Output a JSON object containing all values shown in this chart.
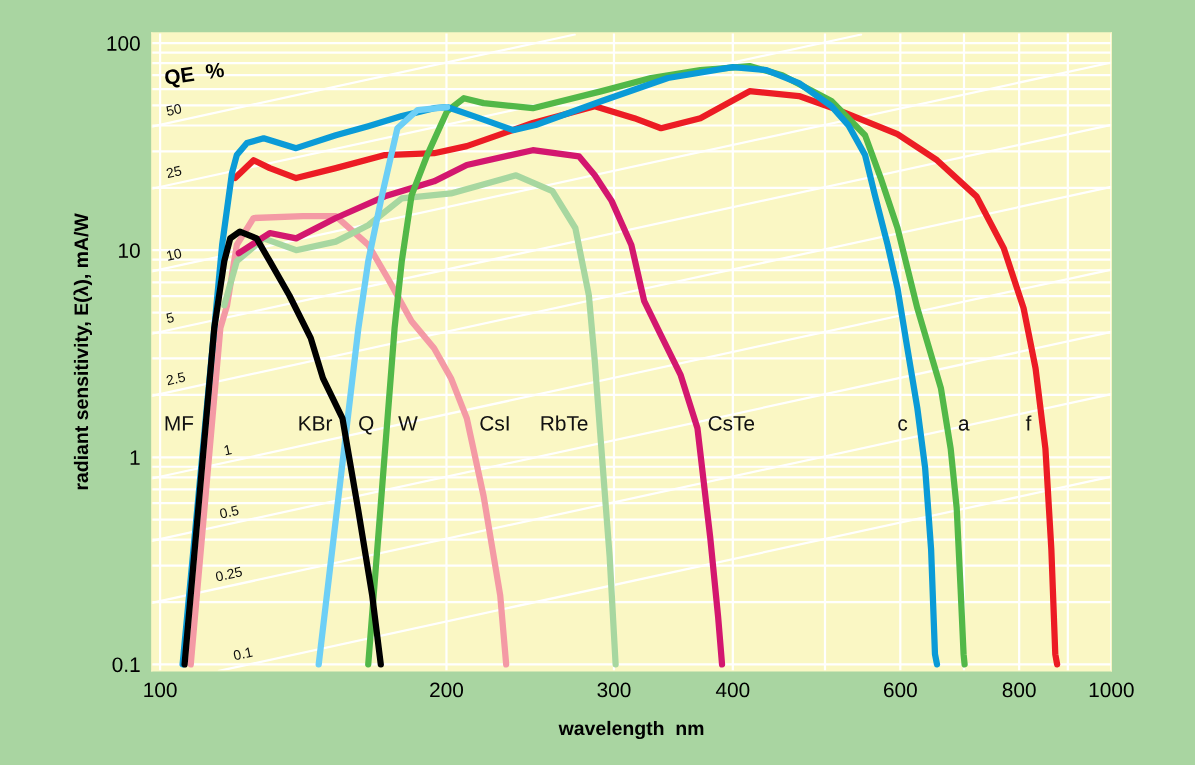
{
  "chart_data": {
    "type": "line",
    "log": "xy",
    "xlabel": "wavelength  nm",
    "ylabel": "radiant sensitivity, E(λ), mA/W",
    "xlim": [
      98,
      1000
    ],
    "ylim": [
      0.093,
      112
    ],
    "xticks": [
      100,
      200,
      300,
      400,
      {
        "value": 500,
        "label": null
      },
      600,
      {
        "value": 700,
        "label": null
      },
      800,
      {
        "value": 900,
        "label": null
      },
      1000
    ],
    "yticks": [
      0.1,
      1,
      10,
      100
    ],
    "grid": true,
    "series": [
      {
        "name": "50",
        "color": "#ffffff",
        "x": [
          98,
          272.8
        ],
        "values": [
          39.5,
          110
        ]
      },
      {
        "name": "25",
        "color": "#ffffff",
        "x": [
          98,
          545.6
        ],
        "values": [
          19.8,
          110
        ]
      },
      {
        "name": "10",
        "color": "#ffffff",
        "x": [
          98,
          1000
        ],
        "values": [
          7.9,
          80.6
        ]
      },
      {
        "name": "5",
        "color": "#ffffff",
        "x": [
          98,
          1000
        ],
        "values": [
          3.95,
          40.3
        ]
      },
      {
        "name": "2.5",
        "color": "#ffffff",
        "x": [
          98,
          1000
        ],
        "values": [
          1.98,
          20.2
        ]
      },
      {
        "name": "1",
        "color": "#ffffff",
        "x": [
          98,
          1000
        ],
        "values": [
          0.79,
          8.06
        ]
      },
      {
        "name": "0.5",
        "color": "#ffffff",
        "x": [
          98,
          1000
        ],
        "values": [
          0.395,
          4.03
        ]
      },
      {
        "name": "0.25",
        "color": "#ffffff",
        "x": [
          98,
          1000
        ],
        "values": [
          0.198,
          2.02
        ]
      },
      {
        "name": "0.1",
        "color": "#ffffff",
        "x": [
          115.3,
          1000
        ],
        "values": [
          0.093,
          0.806
        ]
      },
      {
        "color": "#f49aa5",
        "x": [
          107.7,
          115.7,
          117.6,
          120.4,
          125.4,
          141.3,
          153.0,
          165.5,
          173.5,
          183.8,
          194.1,
          202.2,
          210.1,
          218.8,
          227.8,
          231.1
        ],
        "values": [
          0.1,
          4.2,
          5.42,
          10.6,
          14.3,
          14.6,
          14.6,
          10.6,
          7.32,
          4.54,
          3.36,
          2.41,
          1.54,
          0.65,
          0.215,
          0.1
        ]
      },
      {
        "color": "#a7d7a0",
        "x": [
          116.8,
          120.4,
          128.5,
          139.0,
          153.0,
          165.5,
          179.5,
          202.2,
          236.7,
          258.5,
          273.2,
          282.3,
          286.4,
          289.9,
          296.9,
          301.2
        ],
        "values": [
          5.42,
          8.85,
          11.4,
          10.0,
          11.0,
          13.2,
          17.8,
          18.8,
          23.0,
          19.3,
          12.8,
          6.06,
          2.91,
          1.38,
          0.33,
          0.1
        ]
      },
      {
        "color": "#d3176f",
        "x": [
          121.0,
          130.4,
          139.0,
          153.0,
          172.3,
          194.1,
          210.1,
          246.5,
          275.6,
          286.4,
          298.3,
          312.9,
          322.8,
          336.2,
          352.6,
          367.2,
          378.7,
          386.0,
          389.7
        ],
        "values": [
          9.67,
          12.1,
          11.4,
          14.3,
          18.2,
          21.5,
          25.8,
          30.4,
          28.4,
          23.0,
          17.3,
          10.6,
          5.67,
          3.88,
          2.49,
          1.38,
          0.41,
          0.17,
          0.1
        ]
      },
      {
        "color": "#ec1c24",
        "x": [
          119.9,
          125.4,
          130.4,
          139.0,
          153.0,
          172.3,
          194.1,
          210.1,
          246.5,
          286.4,
          315.1,
          336.2,
          369.8,
          416.6,
          469.5,
          516.4,
          595.9,
          655.7,
          721.4,
          770.9,
          808.6,
          832.4,
          852.5,
          864.8,
          873.1,
          877.0
        ],
        "values": [
          22.3,
          27.2,
          24.9,
          22.3,
          24.9,
          28.8,
          29.4,
          31.8,
          41.1,
          49.6,
          43.4,
          38.8,
          43.4,
          58.6,
          55.5,
          47.5,
          36.3,
          27.2,
          18.2,
          10.2,
          5.25,
          2.69,
          1.1,
          0.36,
          0.112,
          0.1
        ]
      },
      {
        "color": "#52b848",
        "x": [
          165.5,
          176.4,
          179.5,
          183.8,
          190.9,
          200.3,
          208.6,
          218.8,
          246.5,
          291.3,
          328.2,
          369.8,
          416.6,
          450.8,
          507.8,
          550.9,
          572.2,
          595.9,
          625.2,
          661.9,
          677.8,
          687.7,
          694.3,
          699.3,
          701.0
        ],
        "values": [
          0.1,
          4.2,
          8.85,
          18.4,
          28.8,
          46.9,
          54.2,
          51.3,
          48.5,
          58.6,
          67.8,
          74.1,
          77.4,
          70.0,
          52.5,
          35.9,
          22.3,
          12.8,
          5.25,
          2.16,
          1.1,
          0.57,
          0.23,
          0.112,
          0.1
        ]
      },
      {
        "color": "#0a9bd7",
        "x": [
          105.6,
          116.2,
          119.0,
          120.4,
          123.4,
          128.5,
          139.0,
          153.0,
          165.5,
          179.5,
          194.1,
          200.3,
          213.6,
          235.0,
          248.2,
          291.3,
          341.8,
          400.0,
          433.9,
          469.5,
          507.8,
          529.0,
          550.9,
          564.2,
          581.9,
          595.9,
          610.3,
          625.2,
          637.1,
          646.4,
          652.5,
          655.7
        ],
        "values": [
          0.1,
          10.6,
          23.6,
          28.8,
          32.9,
          34.7,
          31.1,
          35.9,
          39.7,
          44.4,
          48.5,
          49.1,
          44.4,
          38.0,
          40.2,
          52.5,
          67.8,
          76.6,
          74.1,
          64.1,
          49.6,
          40.2,
          28.8,
          18.4,
          10.6,
          6.55,
          3.36,
          1.73,
          0.89,
          0.36,
          0.112,
          0.1
        ]
      },
      {
        "color": "#6dcff6",
        "x": [
          146.8,
          161.6,
          165.5,
          171.1,
          177.6,
          186.5,
          200.3
        ],
        "values": [
          0.1,
          4.2,
          8.85,
          18.4,
          38.8,
          47.5,
          49.1
        ]
      },
      {
        "color": "#000000",
        "x": [
          106.1,
          114.0,
          116.8,
          118.5,
          121.3,
          126.3,
          130.4,
          136.7,
          144.0,
          148.3,
          155.5,
          161.6,
          167.1,
          170.6
        ],
        "values": [
          0.1,
          4.2,
          8.85,
          11.4,
          12.3,
          11.4,
          8.85,
          6.06,
          3.76,
          2.41,
          1.54,
          0.55,
          0.215,
          0.1
        ]
      }
    ],
    "annotations": [
      "QE  %",
      {
        "text": "MF",
        "x": 111.5,
        "y": 1.43
      },
      {
        "text": "KBr",
        "x": 155.9,
        "y": 1.43
      },
      {
        "text": "Q",
        "x": 157.2,
        "y": 1.43
      },
      {
        "text": "W",
        "x": 173.2,
        "y": 1.43
      },
      {
        "text": "CsI",
        "x": 210.8,
        "y": 1.43
      },
      {
        "text": "RbTe",
        "x": 289.7,
        "y": 1.43
      },
      {
        "text": "CsTe",
        "x": 366.3,
        "y": 1.43
      },
      {
        "text": "c",
        "x": 627.6,
        "y": 1.43
      },
      {
        "text": "a",
        "x": 671.5,
        "y": 1.43
      },
      {
        "text": "f",
        "x": 846.4,
        "y": 1.43
      }
    ]
  }
}
